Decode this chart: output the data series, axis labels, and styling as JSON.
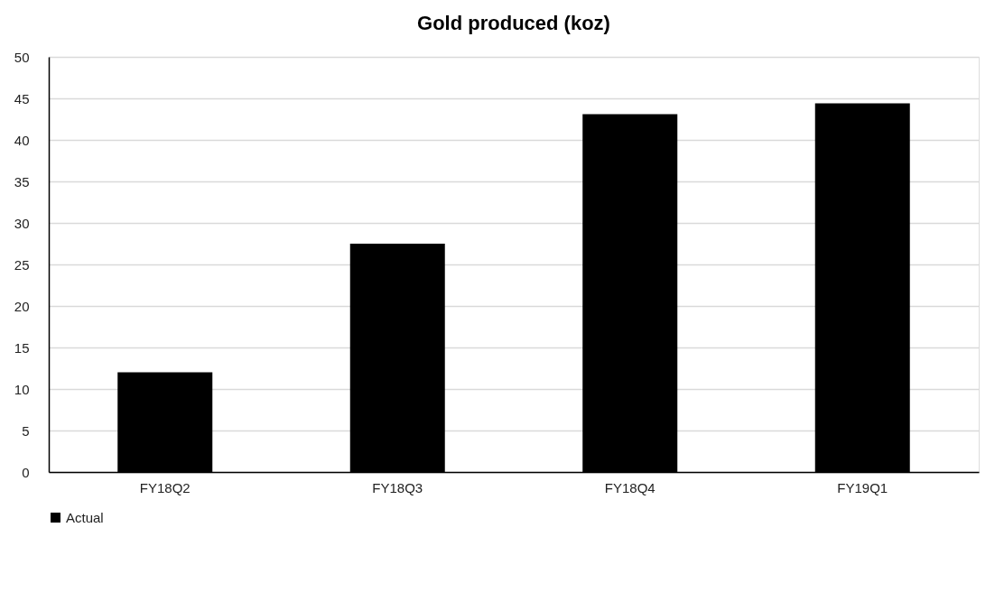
{
  "chart_data": {
    "type": "bar",
    "title": "Gold produced (koz)",
    "categories": [
      "FY18Q2",
      "FY18Q3",
      "FY18Q4",
      "FY19Q1"
    ],
    "series": [
      {
        "name": "Actual",
        "color": "#000000",
        "values": [
          12.0,
          27.5,
          43.1,
          44.4
        ]
      }
    ],
    "ylim": [
      0,
      50
    ],
    "yticks": [
      0,
      5,
      10,
      15,
      20,
      25,
      30,
      35,
      40,
      45,
      50
    ],
    "grid": "y",
    "legend": "bottom"
  }
}
